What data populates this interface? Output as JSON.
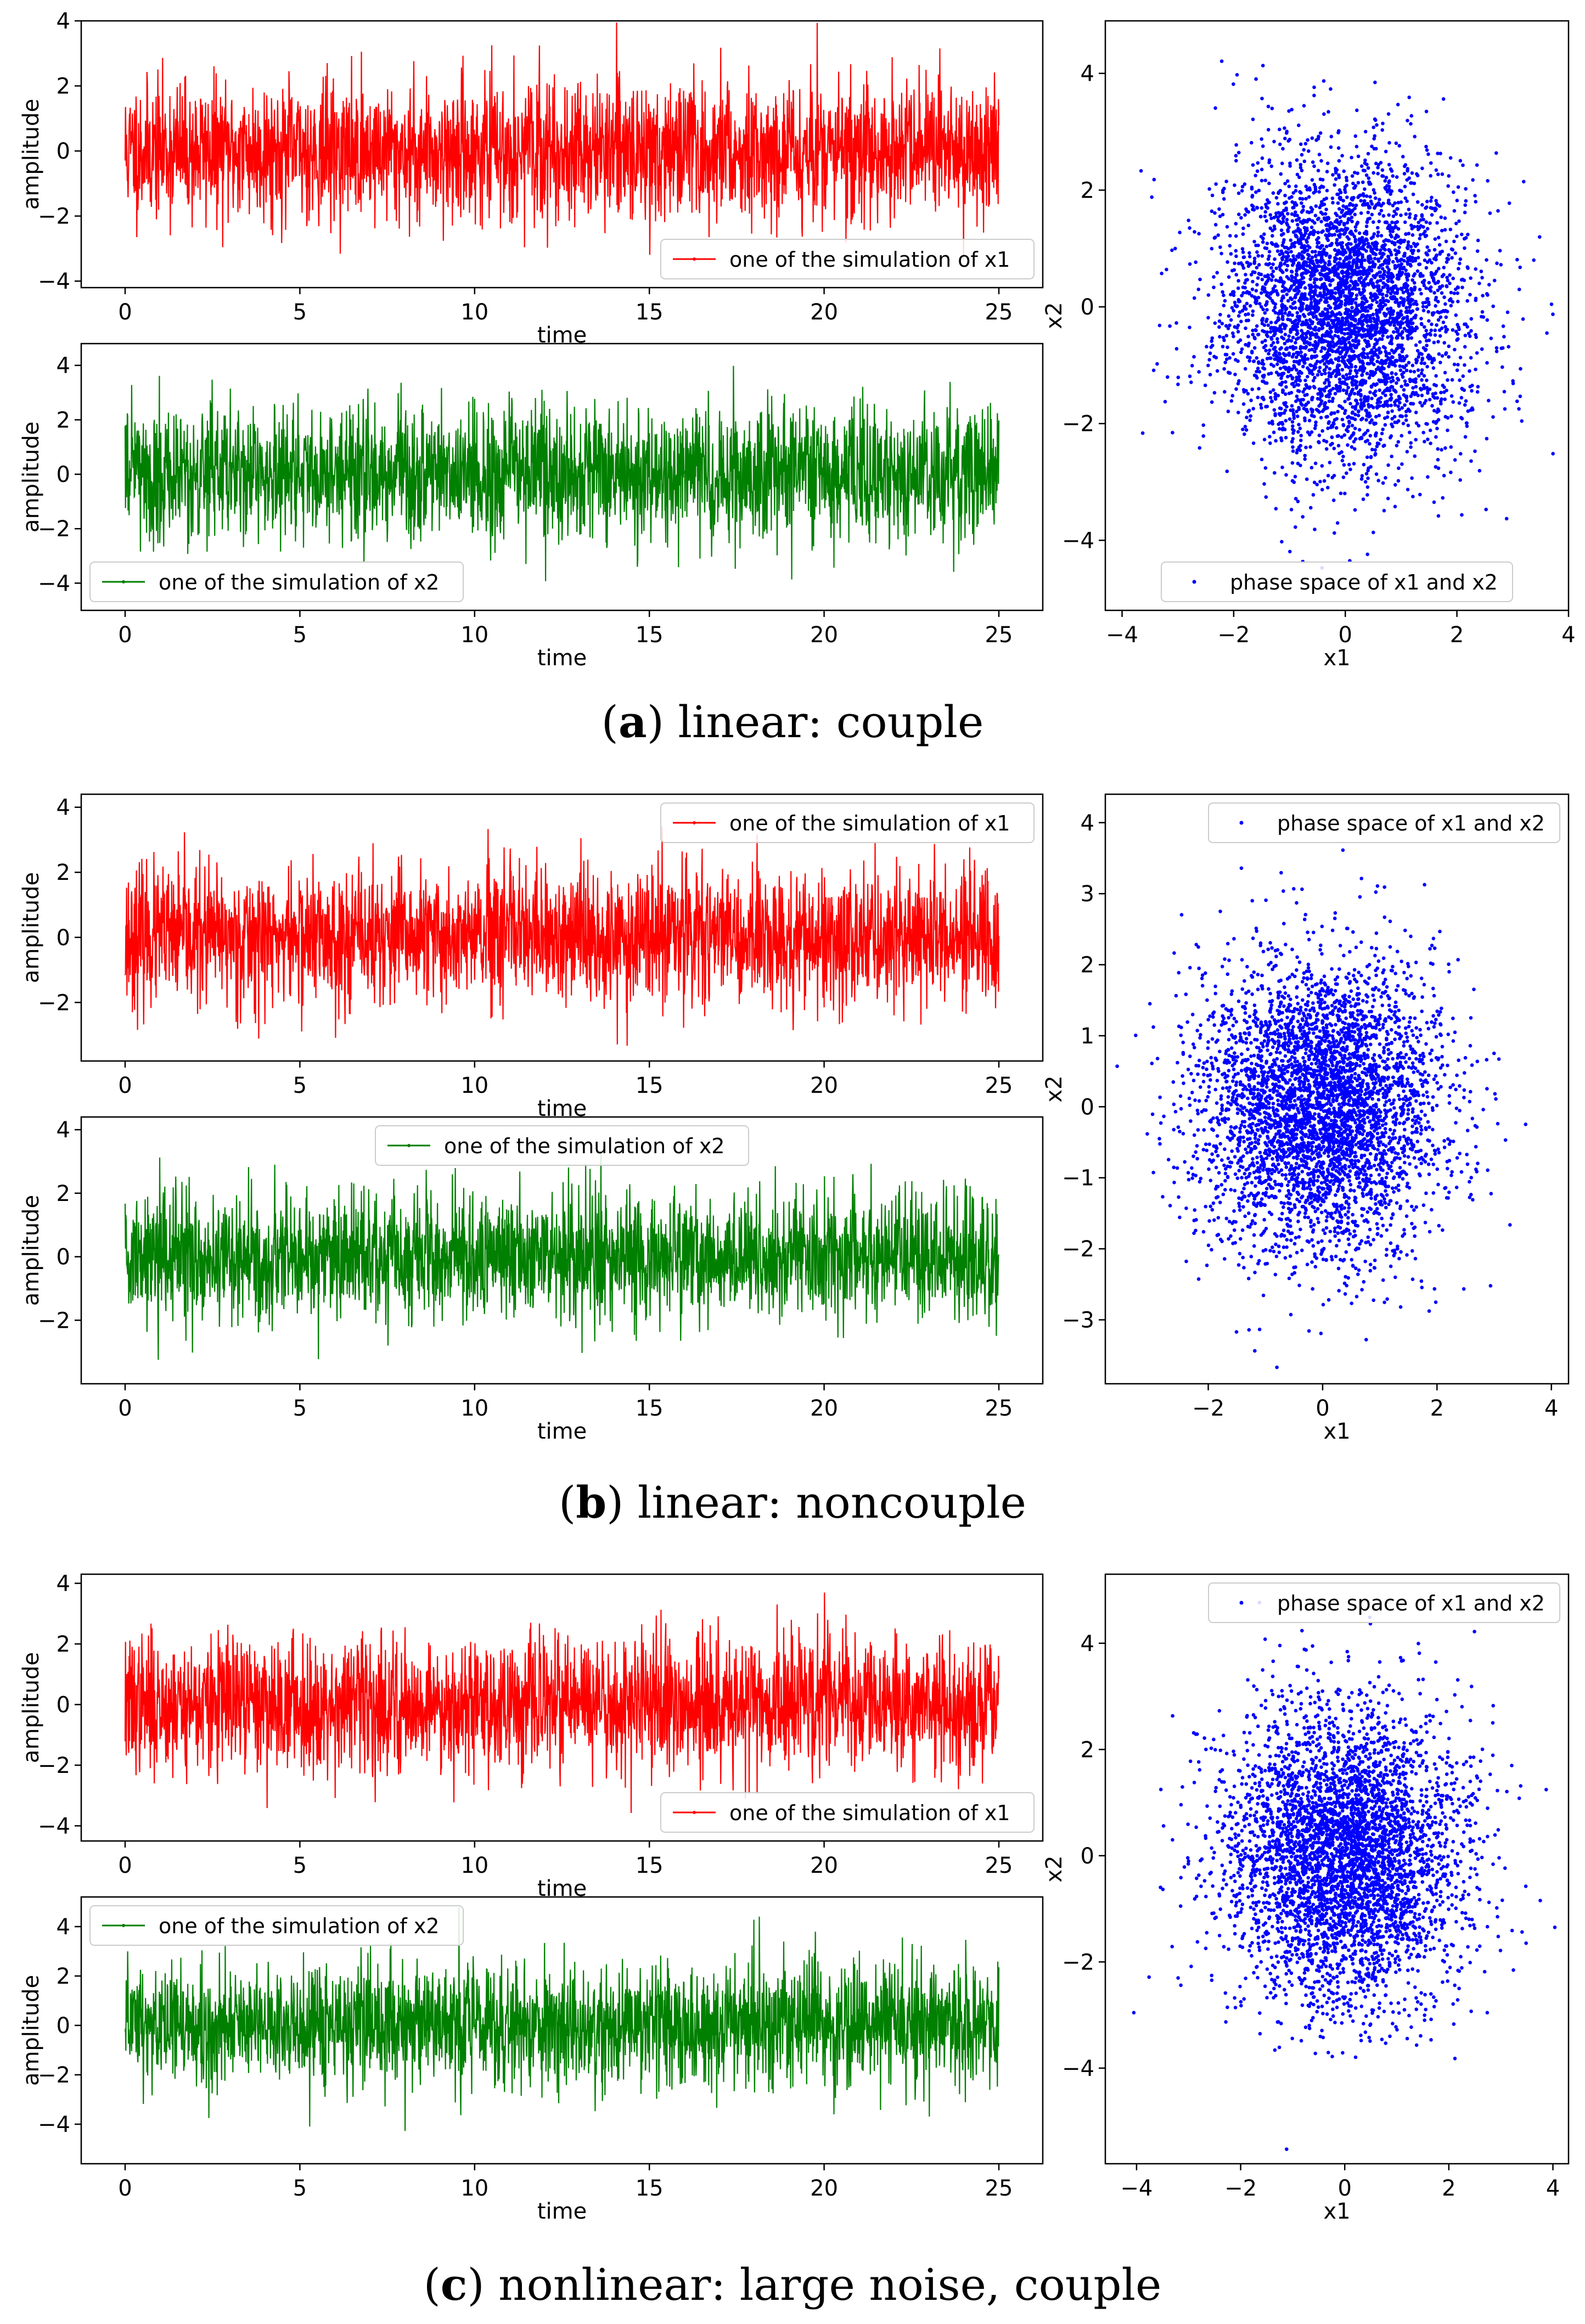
{
  "panels": [
    {
      "id": "a",
      "caption_letter": "a",
      "caption_text": "linear: couple",
      "x1_legend": "top-right-lower",
      "x2_legend": "bottom-left",
      "phase_legend": "bottom",
      "phase_xlim": [
        -4.3,
        4.0
      ],
      "phase_ylim": [
        -5.2,
        4.9
      ],
      "phase_xticks": [
        -4,
        -2,
        0,
        2,
        4
      ],
      "phase_yticks": [
        -4,
        -2,
        0,
        2,
        4
      ],
      "x1_ylim": [
        -4.2,
        4.0
      ],
      "x1_yticks": [
        -4,
        -2,
        0,
        2,
        4
      ],
      "x2_ylim": [
        -5.0,
        4.8
      ],
      "x2_yticks": [
        -4,
        -2,
        0,
        2,
        4
      ],
      "sigma1": 1.05,
      "sigma2": 1.25,
      "phase_sx": 1.1,
      "phase_sy": 1.3,
      "seed": 11
    },
    {
      "id": "b",
      "caption_letter": "b",
      "caption_text": "linear: noncouple",
      "x1_legend": "top-right",
      "x2_legend": "top-center",
      "phase_legend": "top-right",
      "phase_xlim": [
        -3.8,
        4.3
      ],
      "phase_ylim": [
        -3.9,
        4.4
      ],
      "phase_xticks": [
        -2,
        0,
        2,
        4
      ],
      "phase_yticks": [
        -3,
        -2,
        -1,
        0,
        1,
        2,
        3,
        4
      ],
      "x1_ylim": [
        -3.8,
        4.4
      ],
      "x1_yticks": [
        -2,
        0,
        2,
        4
      ],
      "x2_ylim": [
        -4.0,
        4.4
      ],
      "x2_yticks": [
        -2,
        0,
        2,
        4
      ],
      "sigma1": 1.05,
      "sigma2": 1.0,
      "phase_sx": 1.05,
      "phase_sy": 1.0,
      "seed": 23
    },
    {
      "id": "c",
      "caption_letter": "c",
      "caption_text": "nonlinear: large noise, couple",
      "x1_legend": "bottom-right",
      "x2_legend": "top-left",
      "phase_legend": "top-right",
      "phase_xlim": [
        -4.6,
        4.3
      ],
      "phase_ylim": [
        -5.8,
        5.3
      ],
      "phase_xticks": [
        -4,
        -2,
        0,
        2,
        4
      ],
      "phase_yticks": [
        -4,
        -2,
        0,
        2,
        4
      ],
      "x1_ylim": [
        -4.5,
        4.3
      ],
      "x1_yticks": [
        -4,
        -2,
        0,
        2,
        4
      ],
      "x2_ylim": [
        -5.6,
        5.2
      ],
      "x2_yticks": [
        -4,
        -2,
        0,
        2,
        4
      ],
      "sigma1": 1.1,
      "sigma2": 1.25,
      "phase_sx": 1.1,
      "phase_sy": 1.35,
      "seed": 37
    }
  ],
  "chart_data": [
    {
      "type": "line",
      "title": "",
      "xlabel": "time",
      "ylabel": "amplitude",
      "xlim": [
        0,
        25
      ],
      "xticks": [
        0,
        5,
        10,
        15,
        20,
        25
      ],
      "series": [
        {
          "name": "one of the simulation of x1",
          "color": "#ff0000",
          "values": "simulated noise, mean 0, approx std 1"
        }
      ]
    },
    {
      "type": "line",
      "xlabel": "time",
      "ylabel": "amplitude",
      "xlim": [
        0,
        25
      ],
      "xticks": [
        0,
        5,
        10,
        15,
        20,
        25
      ],
      "series": [
        {
          "name": "one of the simulation of x2",
          "color": "#008000",
          "values": "simulated noise, mean 0, approx std 1"
        }
      ]
    },
    {
      "type": "scatter",
      "xlabel": "x1",
      "ylabel": "x2",
      "series": [
        {
          "name": "phase space of x1 and x2",
          "color": "#0000ff",
          "values": "approx bivariate normal, mean (0,0)"
        }
      ]
    }
  ],
  "labels": {
    "time": "time",
    "amplitude": "amplitude",
    "x1": "x1",
    "x2": "x2",
    "legend_x1": "one of the simulation of x1",
    "legend_x2": "one of the simulation of x2",
    "legend_phase": "phase space of x1 and x2"
  },
  "colors": {
    "x1": "#ff0000",
    "x2": "#008000",
    "phase": "#0000ff"
  }
}
